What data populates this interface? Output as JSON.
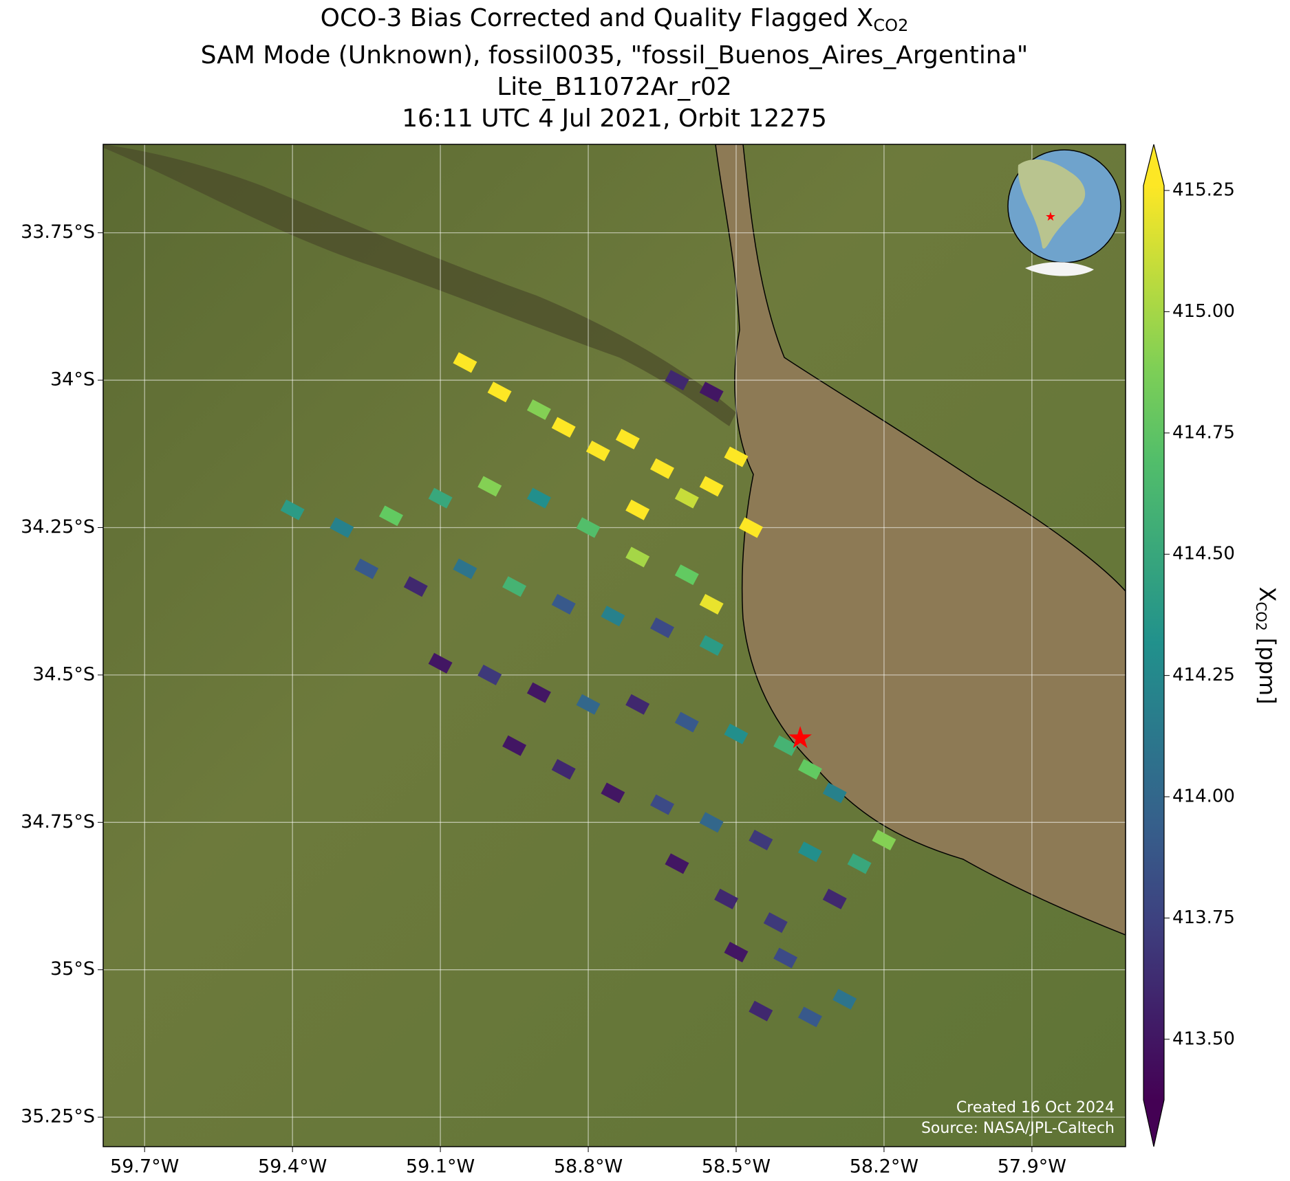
{
  "chart_data": {
    "type": "map",
    "title_line1": "OCO-3 Bias Corrected and Quality Flagged X",
    "title_line1_subscript": "CO2",
    "title_line2": "SAM Mode (Unknown), fossil0035, \"fossil_Buenos_Aires_Argentina\"",
    "title_line3": "Lite_B11072Ar_r02",
    "title_line4": "16:11 UTC 4 Jul 2021, Orbit 12275",
    "colorbar_label": "X",
    "colorbar_label_subscript": "CO2",
    "colorbar_label_unit": "[ppm]",
    "annotation_created": "Created 16 Oct 2024",
    "annotation_source": "Source: NASA/JPL-Caltech",
    "xlim": [
      -59.784,
      -57.71
    ],
    "ylim": [
      -35.3,
      -33.6
    ],
    "xticks": [
      {
        "value": -59.7,
        "label": "59.7°W"
      },
      {
        "value": -59.4,
        "label": "59.4°W"
      },
      {
        "value": -59.1,
        "label": "59.1°W"
      },
      {
        "value": -58.8,
        "label": "58.8°W"
      },
      {
        "value": -58.5,
        "label": "58.5°W"
      },
      {
        "value": -58.2,
        "label": "58.2°W"
      },
      {
        "value": -57.9,
        "label": "57.9°W"
      }
    ],
    "yticks": [
      {
        "value": -33.75,
        "label": "33.75°S"
      },
      {
        "value": -34,
        "label": "34°S"
      },
      {
        "value": -34.25,
        "label": "34.25°S"
      },
      {
        "value": -34.5,
        "label": "34.5°S"
      },
      {
        "value": -34.75,
        "label": "34.75°S"
      },
      {
        "value": -35,
        "label": "35°S"
      },
      {
        "value": -35.25,
        "label": "35.25°S"
      }
    ],
    "grid": true,
    "colormap": "viridis",
    "clim": [
      413.375,
      415.26
    ],
    "cticks": [
      {
        "value": 413.5,
        "label": "413.50"
      },
      {
        "value": 413.75,
        "label": "413.75"
      },
      {
        "value": 414,
        "label": "414.00"
      },
      {
        "value": 414.25,
        "label": "414.25"
      },
      {
        "value": 414.5,
        "label": "414.50"
      },
      {
        "value": 414.75,
        "label": "414.75"
      },
      {
        "value": 415,
        "label": "415.00"
      },
      {
        "value": 415.25,
        "label": "415.25"
      }
    ],
    "target": {
      "lon": -58.37,
      "lat": -34.61,
      "color": "#ff0000"
    },
    "soundings": {
      "lon": [
        -59.05,
        -58.98,
        -58.9,
        -58.85,
        -58.78,
        -58.72,
        -58.65,
        -58.6,
        -58.55,
        -58.5,
        -58.47,
        -58.62,
        -58.55,
        -58.7,
        -59.4,
        -59.3,
        -59.2,
        -59.1,
        -59.0,
        -58.9,
        -58.8,
        -58.7,
        -58.6,
        -58.55,
        -59.25,
        -59.15,
        -59.05,
        -58.95,
        -58.85,
        -58.75,
        -58.65,
        -58.55,
        -59.1,
        -59.0,
        -58.9,
        -58.8,
        -58.7,
        -58.6,
        -58.5,
        -58.4,
        -58.35,
        -58.3,
        -58.95,
        -58.85,
        -58.75,
        -58.65,
        -58.55,
        -58.45,
        -58.35,
        -58.25,
        -58.2,
        -58.3,
        -58.62,
        -58.52,
        -58.42,
        -58.5,
        -58.4,
        -58.45,
        -58.35,
        -58.28
      ],
      "lat": [
        -33.97,
        -34.02,
        -34.05,
        -34.08,
        -34.12,
        -34.1,
        -34.15,
        -34.2,
        -34.18,
        -34.13,
        -34.25,
        -34.0,
        -34.02,
        -34.22,
        -34.22,
        -34.25,
        -34.23,
        -34.2,
        -34.18,
        -34.2,
        -34.25,
        -34.3,
        -34.33,
        -34.38,
        -34.32,
        -34.35,
        -34.32,
        -34.35,
        -34.38,
        -34.4,
        -34.42,
        -34.45,
        -34.48,
        -34.5,
        -34.53,
        -34.55,
        -34.55,
        -34.58,
        -34.6,
        -34.62,
        -34.66,
        -34.7,
        -34.62,
        -34.66,
        -34.7,
        -34.72,
        -34.75,
        -34.78,
        -34.8,
        -34.82,
        -34.78,
        -34.88,
        -34.82,
        -34.88,
        -34.92,
        -34.97,
        -34.98,
        -35.07,
        -35.08,
        -35.05
      ],
      "xco2": [
        415.3,
        415.3,
        414.9,
        415.3,
        415.3,
        415.3,
        415.3,
        415.1,
        415.3,
        415.3,
        415.3,
        413.6,
        413.5,
        415.3,
        414.4,
        414.2,
        414.8,
        414.5,
        414.9,
        414.3,
        414.7,
        415.0,
        414.8,
        415.2,
        413.9,
        413.6,
        414.1,
        414.6,
        413.9,
        414.2,
        413.8,
        414.4,
        413.5,
        413.7,
        413.5,
        414.0,
        413.6,
        413.9,
        414.3,
        414.6,
        414.8,
        414.2,
        413.5,
        413.6,
        413.5,
        413.8,
        414.0,
        413.7,
        414.3,
        414.5,
        414.9,
        413.6,
        413.5,
        413.6,
        413.7,
        413.5,
        413.8,
        413.6,
        413.9,
        414.1
      ]
    }
  }
}
